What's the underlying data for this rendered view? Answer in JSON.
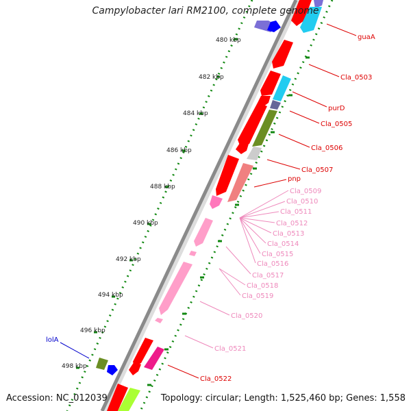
{
  "title": "Campylobacter lari RM2100, complete genome",
  "footer": {
    "accession": "Accession: NC_012039",
    "topology": "Topology: circular; Length: 1,525,460 bp; Genes: 1,558"
  },
  "colors": {
    "red": "#ff0000",
    "cyan": "#22ccf0",
    "olive": "#6b8e23",
    "salmon": "#f08080",
    "pink": "#ff9ec9",
    "hotpink": "#ee1b8a",
    "blue": "#0000ff",
    "lavender": "#7b6fd6",
    "lime": "#aaff33",
    "grey": "#cccccc",
    "backbone": "#8a8a8a",
    "tick": "#118811",
    "red_label": "#dd0000",
    "pink_label": "#ee88bb",
    "blue_label": "#0000cc"
  },
  "ticks": [
    {
      "label": "480 kbp"
    },
    {
      "label": "482 kbp"
    },
    {
      "label": "484 kbp"
    },
    {
      "label": "486 kbp"
    },
    {
      "label": "488 kbp"
    },
    {
      "label": "490 kbp"
    },
    {
      "label": "492 kbp"
    },
    {
      "label": "494 kbp"
    },
    {
      "label": "496 kbp"
    },
    {
      "label": "498 kbp"
    }
  ],
  "gene_labels": [
    {
      "text": "guaA",
      "color": "red"
    },
    {
      "text": "Cla_0503",
      "color": "red"
    },
    {
      "text": "purD",
      "color": "red"
    },
    {
      "text": "Cla_0505",
      "color": "red"
    },
    {
      "text": "Cla_0506",
      "color": "red"
    },
    {
      "text": "Cla_0507",
      "color": "red"
    },
    {
      "text": "pnp",
      "color": "red"
    },
    {
      "text": "Cla_0509",
      "color": "pink"
    },
    {
      "text": "Cla_0510",
      "color": "pink"
    },
    {
      "text": "Cla_0511",
      "color": "pink"
    },
    {
      "text": "Cla_0512",
      "color": "pink"
    },
    {
      "text": "Cla_0513",
      "color": "pink"
    },
    {
      "text": "Cla_0514",
      "color": "pink"
    },
    {
      "text": "Cla_0515",
      "color": "pink"
    },
    {
      "text": "Cla_0516",
      "color": "pink"
    },
    {
      "text": "Cla_0517",
      "color": "pink"
    },
    {
      "text": "Cla_0518",
      "color": "pink"
    },
    {
      "text": "Cla_0519",
      "color": "pink"
    },
    {
      "text": "Cla_0520",
      "color": "pink"
    },
    {
      "text": "Cla_0521",
      "color": "pink"
    },
    {
      "text": "Cla_0522",
      "color": "red"
    },
    {
      "text": "lolA",
      "color": "blue"
    }
  ]
}
